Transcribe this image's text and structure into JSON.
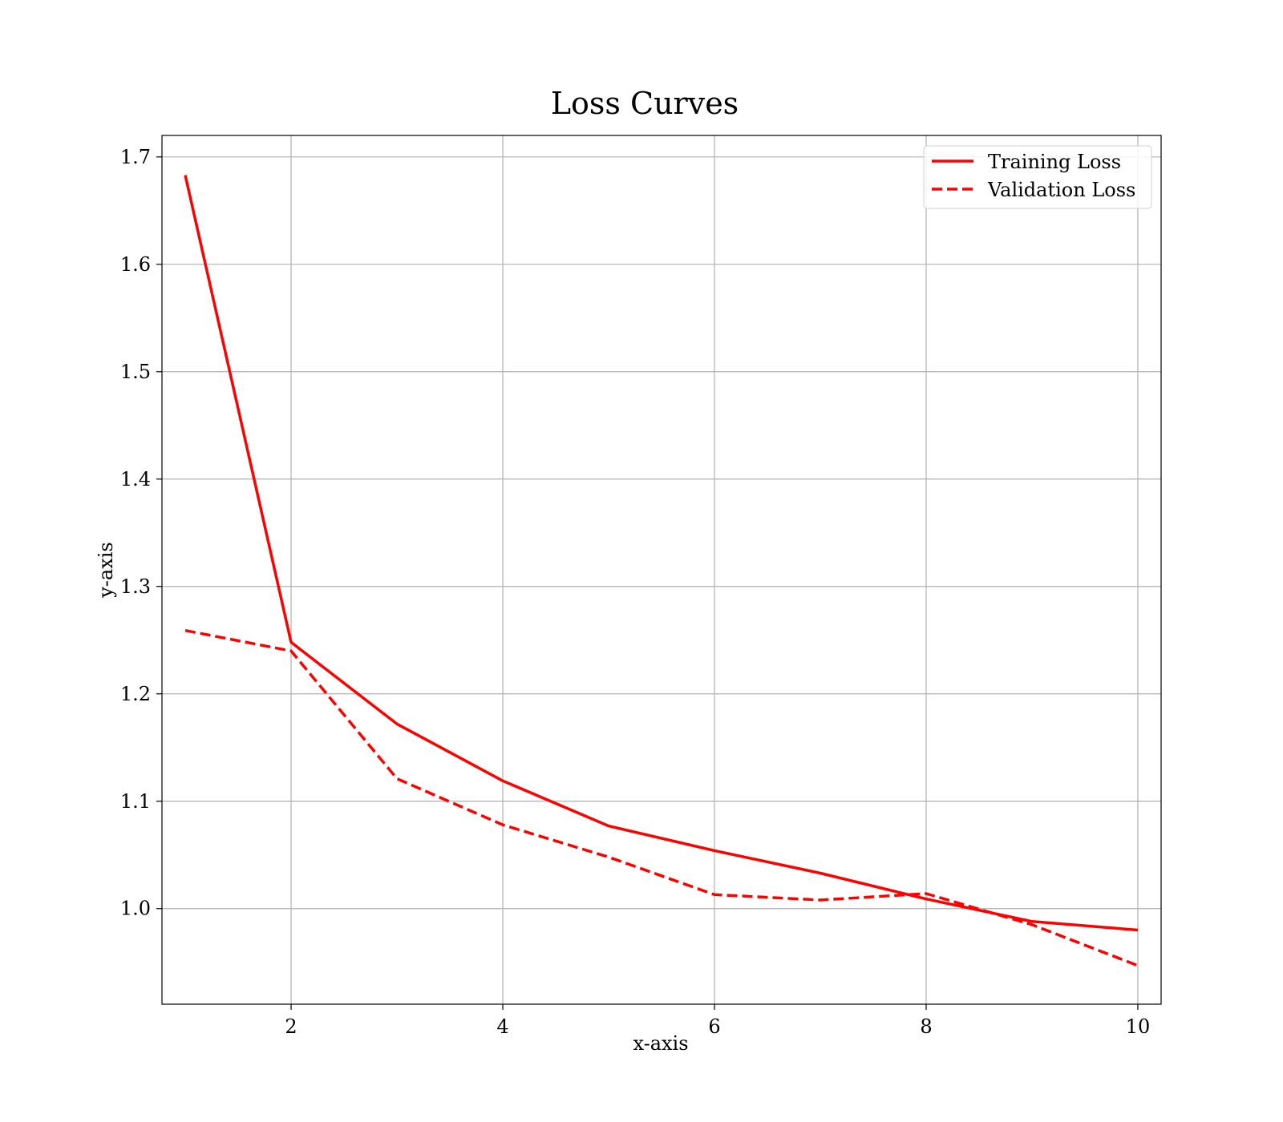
{
  "chart_data": {
    "type": "line",
    "title": "Loss Curves",
    "xlabel": "x-axis",
    "ylabel": "y-axis",
    "x": [
      1,
      2,
      3,
      4,
      5,
      6,
      7,
      8,
      9,
      10
    ],
    "series": [
      {
        "name": "Training Loss",
        "values": [
          1.683,
          1.248,
          1.172,
          1.119,
          1.077,
          1.054,
          1.033,
          1.009,
          0.988,
          0.98
        ],
        "color": "#ff0000",
        "line_style": "solid"
      },
      {
        "name": "Validation Loss",
        "values": [
          1.259,
          1.24,
          1.121,
          1.078,
          1.048,
          1.013,
          1.008,
          1.014,
          0.985,
          0.947
        ],
        "color": "#ff0000",
        "line_style": "dashed"
      }
    ],
    "xlim": [
      0.78,
      10.22
    ],
    "ylim": [
      0.911,
      1.72
    ],
    "xticks": [
      2,
      4,
      6,
      8,
      10
    ],
    "xtick_labels": [
      "2",
      "4",
      "6",
      "8",
      "10"
    ],
    "yticks": [
      1.0,
      1.1,
      1.2,
      1.3,
      1.4,
      1.5,
      1.6,
      1.7
    ],
    "ytick_labels": [
      "1.0",
      "1.1",
      "1.2",
      "1.3",
      "1.4",
      "1.5",
      "1.6",
      "1.7"
    ],
    "grid": true,
    "legend_position": "top-right",
    "grid_color": "#b0b0b0"
  }
}
